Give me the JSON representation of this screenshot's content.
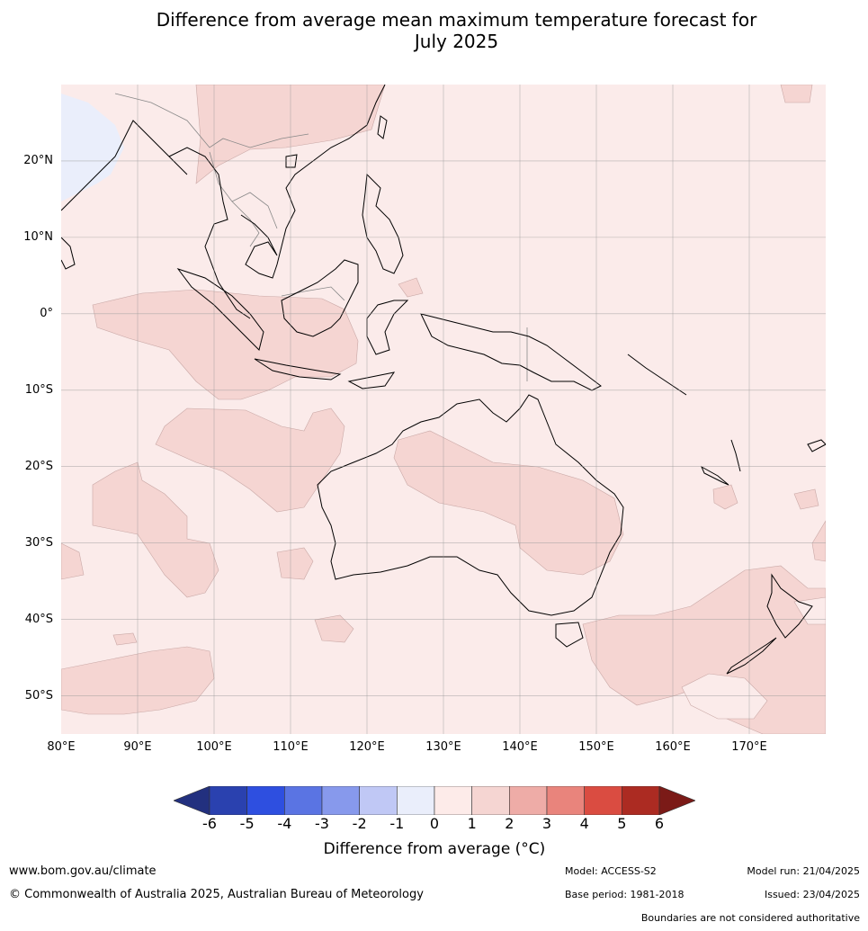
{
  "title_line1": "Difference from average mean maximum temperature forecast for",
  "title_line2": "July 2025",
  "map": {
    "lon_range": [
      80,
      180
    ],
    "lat_range": [
      -55,
      30
    ],
    "lat_labels": [
      "20°N",
      "10°N",
      "0°",
      "10°S",
      "20°S",
      "30°S",
      "40°S",
      "50°S"
    ],
    "lon_labels": [
      "80°E",
      "90°E",
      "100°E",
      "110°E",
      "120°E",
      "130°E",
      "140°E",
      "150°E",
      "160°E",
      "170°E"
    ],
    "background_anomaly": "0 to 1",
    "colors": {
      "ocean_base": "#fbebea",
      "anomaly_1_2": "#f5d5d2",
      "anomaly_neg1_0": "#eaeefb",
      "coast": "#000000",
      "border": "#888888",
      "grid": "#999999"
    }
  },
  "colorbar": {
    "ticks": [
      "-6",
      "-5",
      "-4",
      "-3",
      "-2",
      "-1",
      "0",
      "1",
      "2",
      "3",
      "4",
      "5",
      "6"
    ],
    "colors": [
      "#22307f",
      "#2a41af",
      "#2e4fe0",
      "#5a74e3",
      "#8799ec",
      "#c0c8f5",
      "#eaeefb",
      "#fdebe9",
      "#f5d5d2",
      "#eeaca7",
      "#e9847c",
      "#da4c41",
      "#ac2b22",
      "#7b1a17"
    ],
    "label": "Difference from average (°C)"
  },
  "footer": {
    "website": "www.bom.gov.au/climate",
    "copyright": "© Commonwealth of Australia 2025, Australian Bureau of Meteorology",
    "model": "Model: ACCESS-S2",
    "base_period": "Base period: 1981-2018",
    "model_run": "Model run: 21/04/2025",
    "issued": "Issued: 23/04/2025",
    "disclaimer": "Boundaries are not considered authoritative"
  }
}
